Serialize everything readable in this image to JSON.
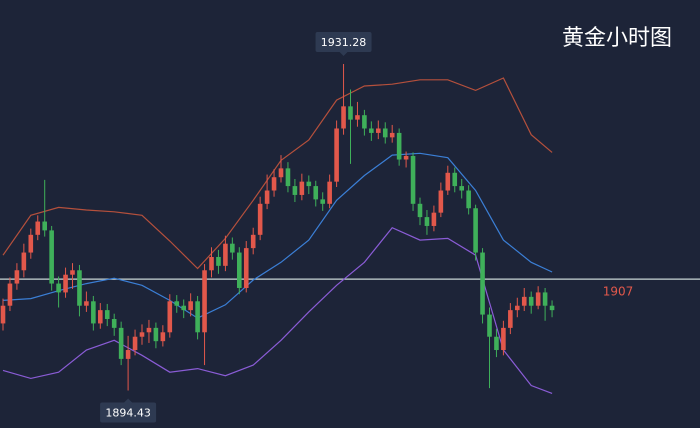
{
  "chart_data": {
    "type": "candlestick",
    "title": "黄金小时图",
    "up_color": "#e2584b",
    "down_color": "#3fb05a",
    "ylim": [
      1890.2,
      1938.5
    ],
    "open": [
      1902.0,
      1904.0,
      1906.5,
      1908.0,
      1910.0,
      1912.0,
      1913.5,
      1912.5,
      1906.5,
      1905.5,
      1907.5,
      1908.0,
      1904.0,
      1904.5,
      1902.0,
      1903.5,
      1902.5,
      1901.5,
      1898.0,
      1899.0,
      1900.5,
      1901.0,
      1901.5,
      1900.0,
      1901.0,
      1904.5,
      1904.0,
      1903.5,
      1904.5,
      1901.0,
      1908.0,
      1909.5,
      1908.5,
      1911.0,
      1910.0,
      1906.0,
      1910.5,
      1912.0,
      1915.5,
      1917.0,
      1918.5,
      1919.5,
      1917.5,
      1916.5,
      1918.0,
      1917.5,
      1916.0,
      1915.5,
      1918.0,
      1924.0,
      1926.5,
      1925.0,
      1925.5,
      1924.0,
      1923.5,
      1924.0,
      1923.0,
      1923.5,
      1920.5,
      1920.9,
      1915.5,
      1914.0,
      1913.0,
      1914.5,
      1917.0,
      1919.0,
      1917.5,
      1917.0,
      1915.0,
      1910.0,
      1903.0,
      1900.5,
      1899.0,
      1901.5,
      1903.5,
      1904.0,
      1905.0,
      1904.0,
      1905.5,
      1904.0
    ],
    "high": [
      1904.8,
      1907.2,
      1908.8,
      1911.0,
      1912.7,
      1914.2,
      1918.2,
      1913.0,
      1907.3,
      1908.3,
      1908.8,
      1908.6,
      1905.6,
      1905.1,
      1904.3,
      1904.2,
      1903.1,
      1902.2,
      1900.6,
      1901.3,
      1901.9,
      1902.4,
      1902.1,
      1901.8,
      1905.3,
      1905.2,
      1904.7,
      1905.4,
      1905.1,
      1908.7,
      1910.6,
      1910.3,
      1911.9,
      1911.7,
      1910.6,
      1911.3,
      1912.8,
      1916.3,
      1918.8,
      1919.4,
      1921.0,
      1920.2,
      1918.3,
      1918.9,
      1918.7,
      1918.1,
      1916.8,
      1918.8,
      1924.9,
      1931.28,
      1928.4,
      1927.0,
      1926.1,
      1924.8,
      1924.9,
      1924.7,
      1924.4,
      1924.0,
      1921.4,
      1921.3,
      1916.2,
      1914.8,
      1915.3,
      1917.9,
      1919.8,
      1919.6,
      1918.3,
      1917.6,
      1915.4,
      1910.5,
      1903.8,
      1901.4,
      1902.3,
      1904.3,
      1904.9,
      1906.0,
      1905.6,
      1906.2,
      1906.0,
      1904.6
    ],
    "low": [
      1901.2,
      1903.4,
      1905.8,
      1907.2,
      1909.3,
      1911.4,
      1911.8,
      1905.7,
      1903.8,
      1904.9,
      1905.9,
      1902.8,
      1903.3,
      1901.2,
      1901.4,
      1901.7,
      1900.6,
      1897.3,
      1894.43,
      1898.4,
      1899.6,
      1899.8,
      1899.2,
      1899.4,
      1900.4,
      1903.2,
      1902.6,
      1902.8,
      1900.2,
      1897.3,
      1907.2,
      1907.6,
      1907.9,
      1909.2,
      1905.3,
      1905.5,
      1909.8,
      1911.4,
      1914.9,
      1916.3,
      1917.9,
      1916.8,
      1915.7,
      1915.9,
      1916.6,
      1915.2,
      1914.7,
      1915.0,
      1917.4,
      1923.3,
      1920.0,
      1924.2,
      1923.2,
      1922.6,
      1922.8,
      1922.3,
      1922.4,
      1919.8,
      1919.6,
      1914.7,
      1913.1,
      1912.0,
      1912.4,
      1914.0,
      1916.5,
      1916.8,
      1916.1,
      1914.3,
      1909.1,
      1902.0,
      1894.7,
      1898.2,
      1898.4,
      1900.8,
      1902.7,
      1903.4,
      1903.1,
      1903.6,
      1902.3,
      1902.7
    ],
    "close": [
      1904.0,
      1906.5,
      1908.0,
      1910.0,
      1912.0,
      1913.5,
      1912.5,
      1906.5,
      1905.5,
      1907.5,
      1908.0,
      1904.0,
      1904.5,
      1902.0,
      1903.5,
      1902.5,
      1901.5,
      1898.0,
      1899.0,
      1900.5,
      1901.0,
      1901.5,
      1900.0,
      1901.0,
      1904.5,
      1904.0,
      1903.5,
      1904.5,
      1901.0,
      1908.0,
      1909.5,
      1908.5,
      1911.0,
      1910.0,
      1906.0,
      1910.5,
      1912.0,
      1915.5,
      1917.0,
      1918.5,
      1919.5,
      1917.5,
      1916.5,
      1918.0,
      1917.5,
      1916.0,
      1915.5,
      1918.0,
      1924.0,
      1926.5,
      1925.0,
      1925.5,
      1924.0,
      1923.5,
      1924.0,
      1923.0,
      1923.5,
      1920.5,
      1920.9,
      1915.5,
      1914.0,
      1913.0,
      1914.5,
      1917.0,
      1919.0,
      1917.5,
      1917.0,
      1915.0,
      1910.0,
      1903.0,
      1900.5,
      1899.0,
      1901.5,
      1903.5,
      1904.0,
      1905.0,
      1904.0,
      1905.5,
      1904.0,
      1903.5
    ],
    "bands": [
      {
        "color": "#b5503c",
        "x": [
          0,
          4,
          8,
          12,
          16,
          20,
          24,
          28,
          32,
          36,
          40,
          44,
          48,
          52,
          56,
          60,
          64,
          68,
          72,
          76,
          79
        ],
        "values": [
          1909.7,
          1914.2,
          1915.1,
          1914.8,
          1914.6,
          1914.2,
          1911.3,
          1908.2,
          1911.6,
          1915.9,
          1920.4,
          1922.7,
          1927.2,
          1928.8,
          1929.0,
          1929.5,
          1929.5,
          1928.3,
          1929.7,
          1923.3,
          1921.3
        ]
      },
      {
        "color": "#3b7fd6",
        "x": [
          0,
          4,
          8,
          12,
          16,
          20,
          24,
          28,
          32,
          36,
          40,
          44,
          48,
          52,
          56,
          60,
          64,
          68,
          72,
          76,
          79
        ],
        "values": [
          1904.6,
          1904.8,
          1905.7,
          1906.5,
          1907.1,
          1906.3,
          1904.6,
          1902.6,
          1904.1,
          1906.9,
          1908.9,
          1911.4,
          1915.9,
          1918.7,
          1921.0,
          1921.2,
          1920.7,
          1917.0,
          1911.4,
          1908.9,
          1907.8
        ]
      },
      {
        "color": "#8a5cd6",
        "x": [
          0,
          4,
          8,
          12,
          16,
          20,
          24,
          28,
          32,
          36,
          40,
          44,
          48,
          52,
          56,
          60,
          64,
          68,
          72,
          76,
          79
        ],
        "values": [
          1896.7,
          1895.8,
          1896.5,
          1899.0,
          1900.1,
          1898.4,
          1896.5,
          1896.9,
          1896.1,
          1897.3,
          1900.1,
          1903.3,
          1906.3,
          1908.9,
          1912.8,
          1911.4,
          1911.6,
          1909.7,
          1899.0,
          1895.0,
          1894.1
        ]
      }
    ],
    "hline": 1907,
    "hline_color": "#c9d6d6",
    "hline_label_color": "#e2584b"
  }
}
